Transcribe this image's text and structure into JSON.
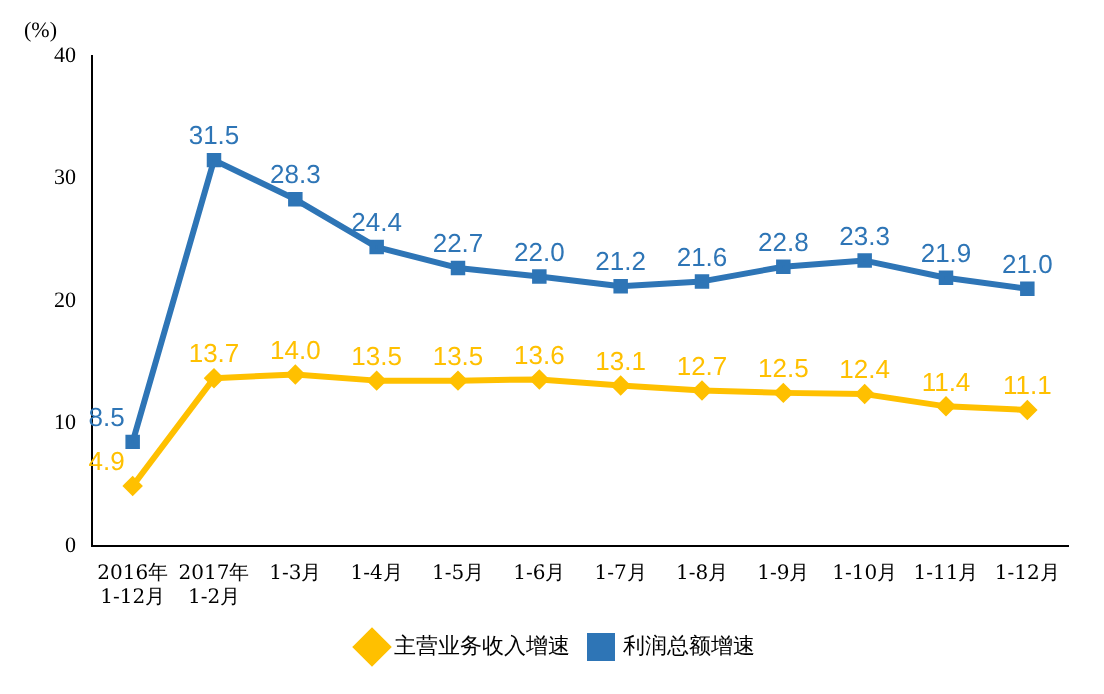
{
  "chart_data": {
    "type": "line",
    "ylabel": "(%)",
    "categories": [
      "2016年\n1-12月",
      "2017年\n1-2月",
      "1-3月",
      "1-4月",
      "1-5月",
      "1-6月",
      "1-7月",
      "1-8月",
      "1-9月",
      "1-10月",
      "1-11月",
      "1-12月"
    ],
    "series": [
      {
        "name": "主营业务收入增速",
        "color": "#ffc000",
        "marker": "diamond",
        "values": [
          4.9,
          13.7,
          14.0,
          13.5,
          13.5,
          13.6,
          13.1,
          12.7,
          12.5,
          12.4,
          11.4,
          11.1
        ],
        "value_labels": [
          "4.9",
          "13.7",
          "14.0",
          "13.5",
          "13.5",
          "13.6",
          "13.1",
          "12.7",
          "12.5",
          "12.4",
          "11.4",
          "11.1"
        ]
      },
      {
        "name": "利润总额增速",
        "color": "#2e75b6",
        "marker": "square",
        "values": [
          8.5,
          31.5,
          28.3,
          24.4,
          22.7,
          22.0,
          21.2,
          21.6,
          22.8,
          23.3,
          21.9,
          21.0
        ],
        "value_labels": [
          "8.5",
          "31.5",
          "28.3",
          "24.4",
          "22.7",
          "22.0",
          "21.2",
          "21.6",
          "22.8",
          "23.3",
          "21.9",
          "21.0"
        ]
      }
    ],
    "ylim": [
      0,
      40
    ],
    "yticks": [
      0,
      10,
      20,
      30,
      40
    ],
    "grid": false,
    "legend": "bottom"
  }
}
